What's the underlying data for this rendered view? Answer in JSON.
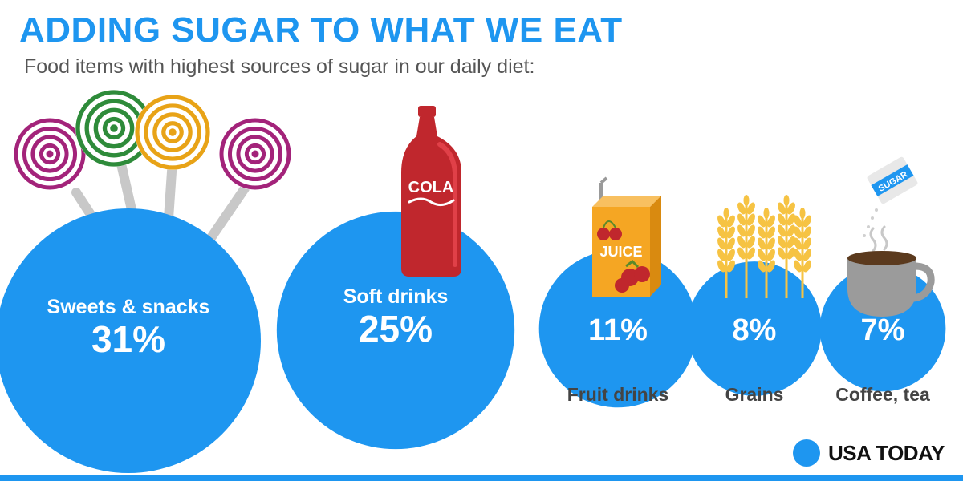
{
  "header": {
    "title": "ADDING SUGAR TO WHAT WE EAT",
    "subtitle": "Food items with highest sources of sugar in our daily diet:"
  },
  "chart_data": {
    "type": "bubble",
    "title": "ADDING SUGAR TO WHAT WE EAT",
    "subtitle": "Food items with highest sources of sugar in our daily diet:",
    "unit": "%",
    "categories": [
      "Sweets & snacks",
      "Soft drinks",
      "Fruit drinks",
      "Grains",
      "Coffee, tea"
    ],
    "values": [
      31,
      25,
      11,
      8,
      7
    ],
    "value_labels": [
      "31%",
      "25%",
      "11%",
      "8%",
      "7%"
    ],
    "label_position": [
      "inside",
      "inside",
      "below",
      "below",
      "below"
    ],
    "icons": [
      "lollipops-icon",
      "cola-bottle-icon",
      "juice-box-icon",
      "wheat-icon",
      "coffee-cup-icon"
    ],
    "icon_text": {
      "bottle": "COLA",
      "juice": "JUICE",
      "sugar": "SUGAR"
    }
  },
  "brand": {
    "name": "USA TODAY"
  },
  "colors": {
    "accent": "#1e96f0",
    "text": "#111111",
    "subtitle": "#555555",
    "cola": "#c0272d",
    "juice": "#f5a623",
    "wheat": "#f6c343",
    "cup": "#9b9b9b"
  }
}
